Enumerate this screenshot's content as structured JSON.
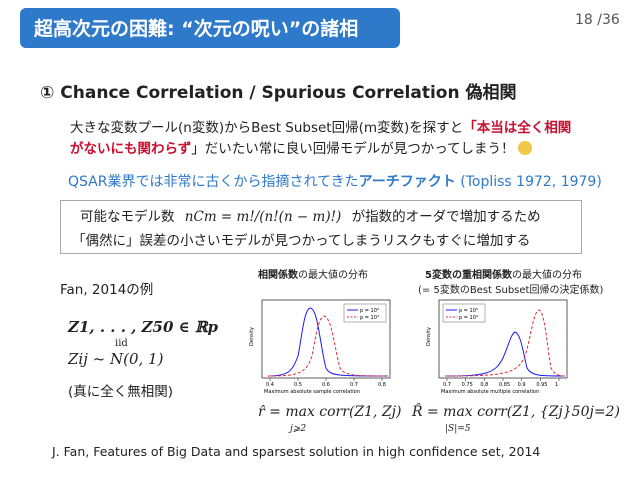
{
  "title": "超高次元の困難: “次元の呪い”の諸相",
  "page": "18 /36",
  "heading": "① Chance Correlation / Spurious Correlation 偽相関",
  "para1": {
    "line1_a": "大きな変数プール(n変数)からBest Subset回帰(m変数)を探すと",
    "line1_b": "「本当は全く相関",
    "line2_a": "がないにも関わらず",
    "line2_b": "」だいたい常に良い回帰モデルが見つかってしまう！"
  },
  "qsar": {
    "prefix": "QSAR業界では非常に古くから指摘されてきた",
    "highlight": "アーチファクト",
    "suffix": " (Topliss 1972, 1979)"
  },
  "box": {
    "line1_a": "可能なモデル数",
    "formula": "nCm = m!/(n!(n − m)!)",
    "line1_b": "が指数的オーダで増加するため",
    "line2": "「偶然に」誤差の小さいモデルが見つかってしまうリスクもすぐに増加する"
  },
  "fan": {
    "label": "Fan, 2014の例",
    "eq1": "Z1, . . . , Z50 ∈ ℝp",
    "eq2": "Zij ~ N(0, 1)",
    "eq2_over": "iid",
    "note": "(真に全く無相関)"
  },
  "chart_left_title": {
    "a": "相関係数",
    "b": "の最大値の分布"
  },
  "chart_right_title": {
    "a": "5変数の重相関係数",
    "b": "の最大値の分布",
    "c": "(= 5変数のBest Subset回帰の決定係数)"
  },
  "formula_left": "r̂ = max corr(Z1, Zj)",
  "formula_left_sub": "j⩾2",
  "formula_right": "R̂ = max corr(Z1, {Zj}50j=2)",
  "formula_right_sub": "|S|=5",
  "footer": "J. Fan, Features of Big Data and sparsest solution in high confidence set, 2014",
  "colors": {
    "title_bg": "#2e79c9",
    "accent_red": "#c8102e",
    "accent_blue": "#2e79c9"
  },
  "chart_data": [
    {
      "type": "line",
      "title": "",
      "xlabel": "Maximum absolute sample correlation",
      "ylabel": "Density",
      "series": [
        {
          "name": "p = 10³",
          "color": "#1a1aff",
          "style": "solid"
        },
        {
          "name": "p = 10⁴",
          "color": "#e0282e",
          "style": "dashed"
        }
      ],
      "x_ticks": [
        "0.4",
        "0.5",
        "0.6",
        "0.7",
        "0.8"
      ]
    },
    {
      "type": "line",
      "title": "",
      "xlabel": "Maximum absolute multiple correlation",
      "ylabel": "Density",
      "series": [
        {
          "name": "p = 10³",
          "color": "#1a1aff",
          "style": "solid"
        },
        {
          "name": "p = 10⁴",
          "color": "#e0282e",
          "style": "dashed"
        }
      ],
      "x_ticks": [
        "0.7",
        "0.75",
        "0.8",
        "0.85",
        "0.9",
        "0.95",
        "1"
      ]
    }
  ]
}
